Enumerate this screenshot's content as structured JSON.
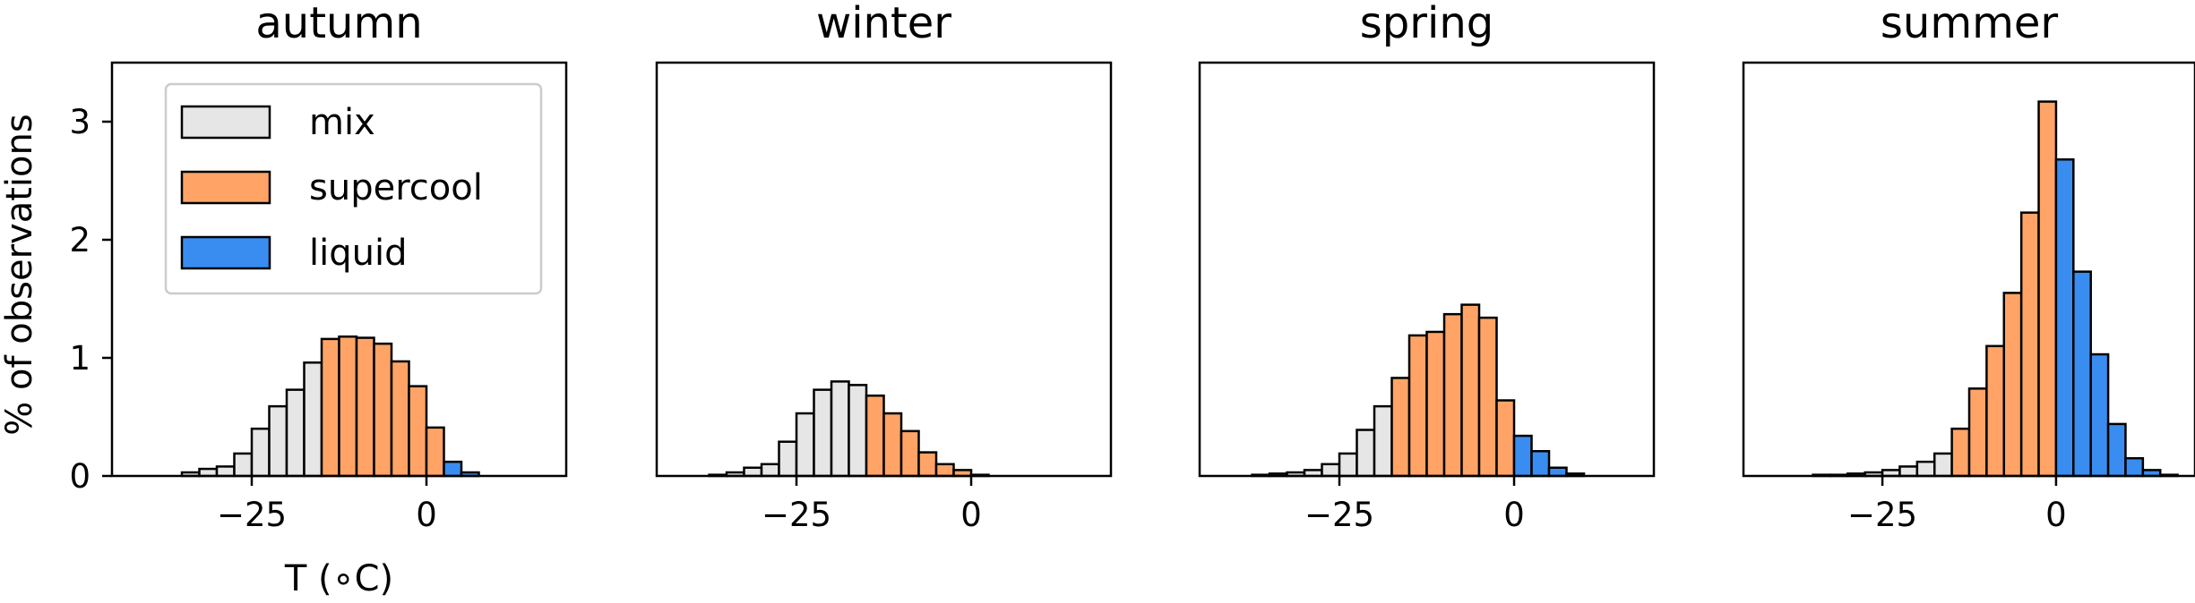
{
  "chart_data": [
    {
      "type": "bar",
      "title": "autumn",
      "xlabel": "T (∘C)",
      "ylabel": "% of observations",
      "xlim": [
        -45,
        20
      ],
      "ylim": [
        0,
        3.5
      ],
      "xticks": [
        -25,
        0
      ],
      "yticks": [
        0,
        1,
        2,
        3
      ],
      "bin_width": 2.5,
      "x": [
        -35,
        -32.5,
        -30,
        -27.5,
        -25,
        -22.5,
        -20,
        -17.5,
        -15,
        -12.5,
        -10,
        -7.5,
        -5,
        -2.5,
        0,
        2.5,
        5
      ],
      "values": [
        0.03,
        0.06,
        0.08,
        0.19,
        0.4,
        0.59,
        0.73,
        0.96,
        1.16,
        1.18,
        1.17,
        1.12,
        0.97,
        0.76,
        0.41,
        0.12,
        0.03
      ],
      "classes": [
        "mix",
        "mix",
        "mix",
        "mix",
        "mix",
        "mix",
        "mix",
        "mix",
        "supercool",
        "supercool",
        "supercool",
        "supercool",
        "supercool",
        "supercool",
        "supercool",
        "liquid",
        "liquid"
      ],
      "legend": {
        "location": "upper left",
        "entries": [
          {
            "label": "mix",
            "class": "mix"
          },
          {
            "label": "supercool",
            "class": "supercool"
          },
          {
            "label": "liquid",
            "class": "liquid"
          }
        ]
      }
    },
    {
      "type": "bar",
      "title": "winter",
      "xlabel": "",
      "ylabel": "",
      "xlim": [
        -45,
        20
      ],
      "ylim": [
        0,
        3.5
      ],
      "xticks": [
        -25,
        0
      ],
      "yticks": [],
      "bin_width": 2.5,
      "x": [
        -37.5,
        -35,
        -32.5,
        -30,
        -27.5,
        -25,
        -22.5,
        -20,
        -17.5,
        -15,
        -12.5,
        -10,
        -7.5,
        -5,
        -2.5,
        0
      ],
      "values": [
        0.01,
        0.03,
        0.07,
        0.1,
        0.29,
        0.53,
        0.73,
        0.8,
        0.77,
        0.68,
        0.53,
        0.38,
        0.2,
        0.1,
        0.05,
        0.01
      ],
      "classes": [
        "mix",
        "mix",
        "mix",
        "mix",
        "mix",
        "mix",
        "mix",
        "mix",
        "mix",
        "supercool",
        "supercool",
        "supercool",
        "supercool",
        "supercool",
        "supercool",
        "supercool"
      ]
    },
    {
      "type": "bar",
      "title": "spring",
      "xlabel": "",
      "ylabel": "",
      "xlim": [
        -45,
        20
      ],
      "ylim": [
        0,
        3.5
      ],
      "xticks": [
        -25,
        0
      ],
      "yticks": [],
      "bin_width": 2.5,
      "x": [
        -37.5,
        -35,
        -32.5,
        -30,
        -27.5,
        -25,
        -22.5,
        -20,
        -17.5,
        -15,
        -12.5,
        -10,
        -7.5,
        -5,
        -2.5,
        0,
        2.5,
        5,
        7.5
      ],
      "values": [
        0.01,
        0.02,
        0.03,
        0.05,
        0.1,
        0.19,
        0.39,
        0.59,
        0.83,
        1.19,
        1.22,
        1.37,
        1.45,
        1.34,
        0.64,
        0.34,
        0.21,
        0.07,
        0.02
      ],
      "classes": [
        "mix",
        "mix",
        "mix",
        "mix",
        "mix",
        "mix",
        "mix",
        "mix",
        "supercool",
        "supercool",
        "supercool",
        "supercool",
        "supercool",
        "supercool",
        "supercool",
        "liquid",
        "liquid",
        "liquid",
        "liquid"
      ]
    },
    {
      "type": "bar",
      "title": "summer",
      "xlabel": "",
      "ylabel": "",
      "xlim": [
        -45,
        20
      ],
      "ylim": [
        0,
        3.5
      ],
      "xticks": [
        -25,
        0
      ],
      "yticks": [],
      "bin_width": 2.5,
      "x": [
        -35,
        -32.5,
        -30,
        -27.5,
        -25,
        -22.5,
        -20,
        -17.5,
        -15,
        -12.5,
        -10,
        -7.5,
        -5,
        -2.5,
        0,
        2.5,
        5,
        7.5,
        10,
        12.5,
        15
      ],
      "values": [
        0.01,
        0.01,
        0.02,
        0.03,
        0.05,
        0.08,
        0.12,
        0.19,
        0.4,
        0.74,
        1.1,
        1.55,
        2.23,
        3.17,
        2.68,
        1.73,
        1.03,
        0.44,
        0.15,
        0.05,
        0.01
      ],
      "classes": [
        "mix",
        "mix",
        "mix",
        "mix",
        "mix",
        "mix",
        "mix",
        "mix",
        "supercool",
        "supercool",
        "supercool",
        "supercool",
        "supercool",
        "supercool",
        "liquid",
        "liquid",
        "liquid",
        "liquid",
        "liquid",
        "liquid",
        "liquid"
      ]
    }
  ],
  "colors": {
    "mix": "#e6e6e6",
    "supercool": "#ffa466",
    "liquid": "#3a8df0",
    "edge": "#000000"
  }
}
